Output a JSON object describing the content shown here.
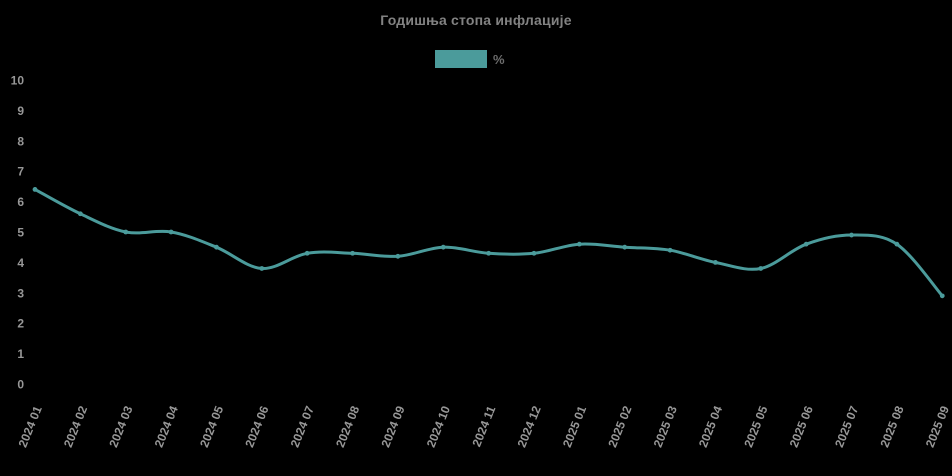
{
  "page": {
    "background_color": "#000000"
  },
  "chart_data": {
    "type": "line",
    "title": "Годишња стопа инфлације",
    "categories": [
      "2024 01",
      "2024 02",
      "2024 03",
      "2024 04",
      "2024 05",
      "2024 06",
      "2024 07",
      "2024 08",
      "2024 09",
      "2024 10",
      "2024 11",
      "2024 12",
      "2025 01",
      "2025 02",
      "2025 03",
      "2025 04",
      "2025 05",
      "2025 06",
      "2025 07",
      "2025 08",
      "2025 09"
    ],
    "series": [
      {
        "name": "%",
        "color": "#4b9b9b",
        "values": [
          6.4,
          5.6,
          5.0,
          5.0,
          4.5,
          3.8,
          4.3,
          4.3,
          4.2,
          4.5,
          4.3,
          4.3,
          4.6,
          4.5,
          4.4,
          4.0,
          3.8,
          4.6,
          4.9,
          4.6,
          2.9
        ]
      }
    ],
    "xlabel": "",
    "ylabel": "",
    "ylim": [
      0,
      10
    ],
    "yticks": [
      0,
      1,
      2,
      3,
      4,
      5,
      6,
      7,
      8,
      9,
      10
    ],
    "grid": false,
    "axis_lines": false,
    "legend_position": "top",
    "line_smoothing": true,
    "x_label_rotation_deg": -68
  },
  "colors": {
    "title_text": "#828282",
    "tick_text": "#979797",
    "legend_text": "#6d6d6d",
    "line": "#4b9b9b"
  }
}
